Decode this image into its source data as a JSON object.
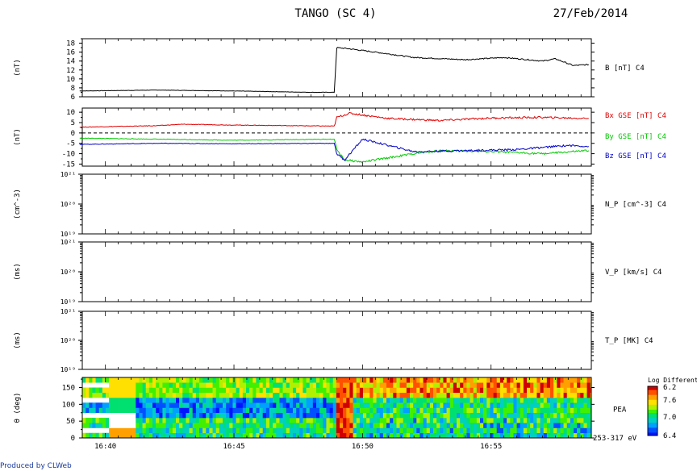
{
  "header": {
    "title": "TANGO (SC 4)",
    "date": "27/Feb/2014"
  },
  "footer": {
    "credit": "Produced by CLWeb"
  },
  "colors": {
    "axis": "#000000",
    "bx": "#e00000",
    "by": "#00c800",
    "bz": "#0000c8",
    "credit": "#1b3a9a"
  },
  "chart_data": [
    {
      "type": "line",
      "panel": "B",
      "ylabel": "(nT)",
      "ylim": [
        6,
        19
      ],
      "yticks": [
        6,
        8,
        10,
        12,
        14,
        16,
        18
      ],
      "series": [
        {
          "name": "B [nT] C4",
          "color": "#000000",
          "x": [
            "16:39",
            "16:42",
            "16:45",
            "16:48",
            "16:48.9",
            "16:49.0",
            "16:49.4",
            "16:50.5",
            "16:52",
            "16:54",
            "16:55.5",
            "16:57",
            "16:57.5",
            "16:58.2",
            "16:58.8"
          ],
          "values": [
            7.3,
            7.5,
            7.3,
            7.0,
            7.0,
            17.0,
            16.8,
            16.0,
            14.8,
            14.3,
            14.8,
            14.0,
            14.5,
            13.0,
            13.2
          ]
        }
      ]
    },
    {
      "type": "line",
      "panel": "B GSE",
      "ylabel": "(nT)",
      "ylim": [
        -16,
        12
      ],
      "yticks": [
        -15,
        -10,
        -5,
        0,
        5,
        10
      ],
      "zero_line": true,
      "series": [
        {
          "name": "Bx GSE [nT] C4",
          "color": "#e00000",
          "x": [
            "16:39",
            "16:42",
            "16:43",
            "16:45",
            "16:48.9",
            "16:49.0",
            "16:49.5",
            "16:51",
            "16:53",
            "16:55",
            "16:57",
            "16:58.8"
          ],
          "values": [
            2.8,
            3.5,
            4.2,
            3.8,
            3.3,
            7.5,
            9.5,
            7.0,
            6.0,
            7.2,
            7.5,
            7.0
          ]
        },
        {
          "name": "By GSE [nT] C4",
          "color": "#00c800",
          "x": [
            "16:39",
            "16:42",
            "16:45",
            "16:48.9",
            "16:49.0",
            "16:49.3",
            "16:50",
            "16:51",
            "16:52",
            "16:53",
            "16:55",
            "16:57",
            "16:58.8"
          ],
          "values": [
            -2.5,
            -3.0,
            -3.5,
            -3.0,
            -8.0,
            -13.0,
            -14.0,
            -12.0,
            -10.0,
            -8.5,
            -9.0,
            -10.0,
            -8.5
          ]
        },
        {
          "name": "Bz GSE [nT] C4",
          "color": "#0000c8",
          "x": [
            "16:39",
            "16:42",
            "16:45",
            "16:48.9",
            "16:49.0",
            "16:49.3",
            "16:50",
            "16:51",
            "16:52",
            "16:54",
            "16:56",
            "16:58",
            "16:58.8"
          ],
          "values": [
            -5.5,
            -5.0,
            -5.2,
            -5.0,
            -10.0,
            -13.0,
            -3.0,
            -6.0,
            -9.0,
            -8.5,
            -8.0,
            -6.0,
            -6.5
          ]
        }
      ]
    },
    {
      "type": "line",
      "panel": "N_P",
      "ylabel": "(cm^-3)",
      "yscale": "log",
      "ytick_labels": [
        "10²¹",
        "10²⁰",
        "10¹⁹"
      ],
      "series": [
        {
          "name": "N_P [cm^-3] C4",
          "values": []
        }
      ]
    },
    {
      "type": "line",
      "panel": "V_P",
      "ylabel": "(ms)",
      "yscale": "log",
      "ytick_labels": [
        "10²¹",
        "10²⁰",
        "10¹⁹"
      ],
      "series": [
        {
          "name": "V_P [km/s] C4",
          "values": []
        }
      ]
    },
    {
      "type": "line",
      "panel": "T_P",
      "ylabel": "(ms)",
      "yscale": "log",
      "ytick_labels": [
        "10²¹",
        "10²⁰",
        "10¹⁹"
      ],
      "series": [
        {
          "name": "T_P [MK] C4",
          "values": []
        }
      ]
    },
    {
      "type": "heatmap",
      "panel": "PEA",
      "ylabel": "θ (deg)",
      "ylim": [
        0,
        180
      ],
      "yticks": [
        0,
        50,
        100,
        150
      ],
      "instrument_label": "PEA",
      "energy_label": "253-317 eV",
      "colorbar": {
        "title": "Log Differenti",
        "ticks": [
          "6.2",
          "7.6",
          "7.0",
          "6.4"
        ]
      },
      "xtick_labels": [
        "16:40",
        "16:45",
        "16:50",
        "16:55"
      ],
      "xrange_minutes": [
        39.1,
        58.9
      ],
      "regions": [
        {
          "from": "16:40.0",
          "to": "16:48.9",
          "theta_0_60": "green-blue",
          "theta_60_120": "blue",
          "theta_120_180": "green-yellow"
        },
        {
          "from": "16:48.9",
          "to": "16:49.6",
          "all_theta": "red-orange"
        },
        {
          "from": "16:49.6",
          "to": "16:58.9",
          "theta_0_60": "green-blue",
          "theta_60_120": "blue-green",
          "theta_120_180": "orange-red"
        }
      ]
    }
  ]
}
